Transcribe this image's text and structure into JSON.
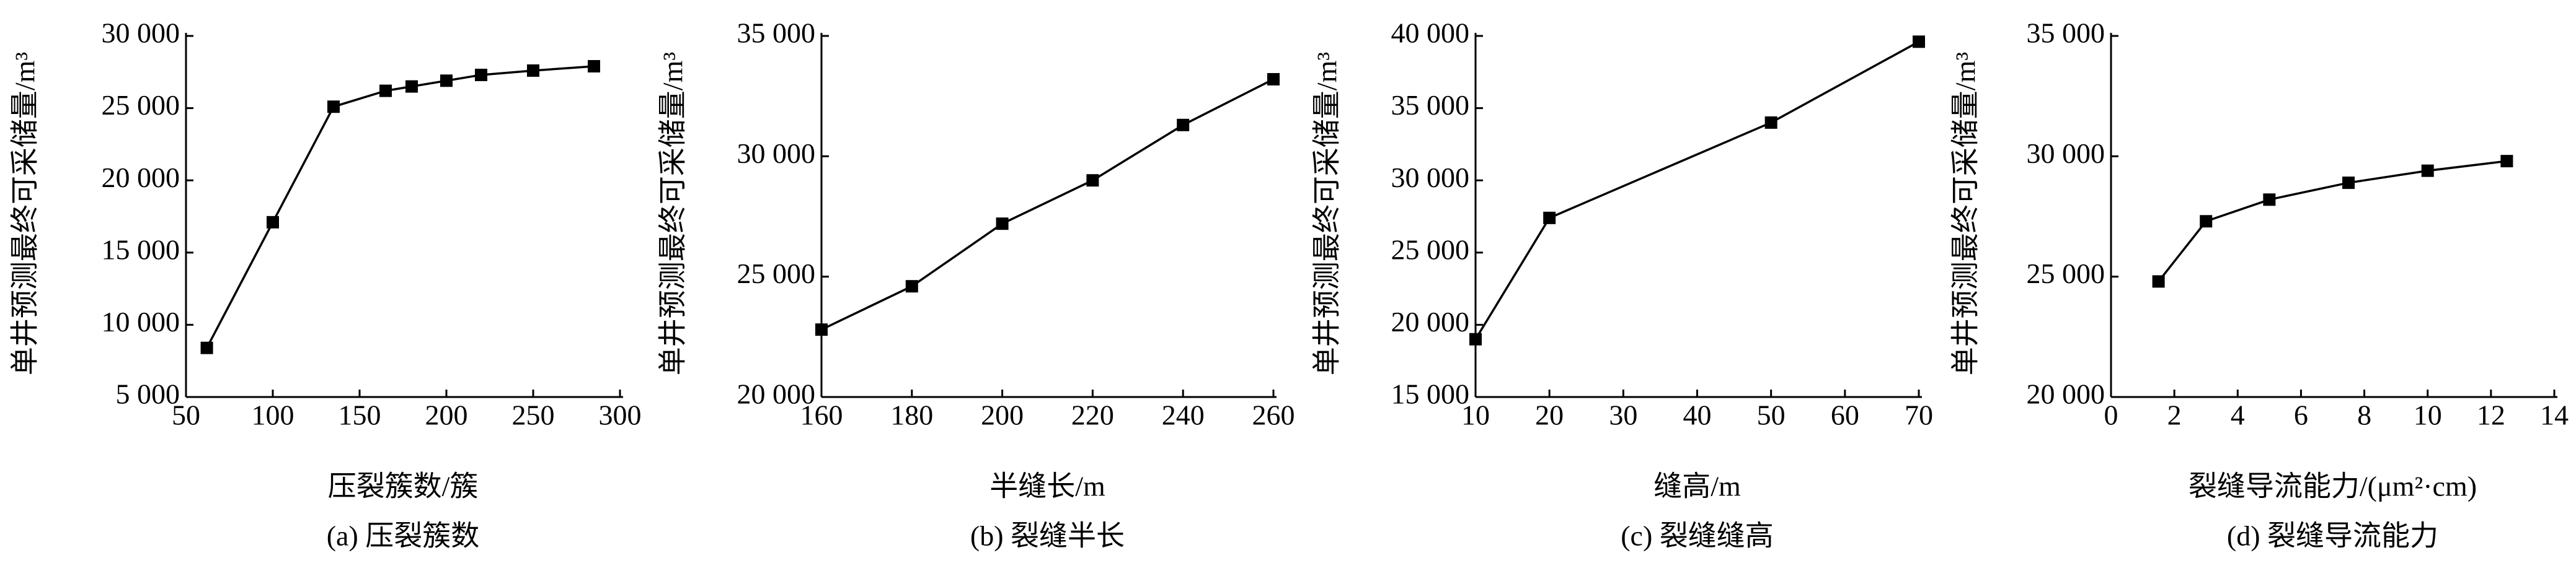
{
  "chart_data": [
    {
      "type": "line",
      "ylabel": "单井预测最终可采储量/m³",
      "xlabel": "压裂簇数/簇",
      "caption": "(a) 压裂簇数",
      "color": "#000000",
      "x": [
        62,
        100,
        135,
        165,
        180,
        200,
        220,
        250,
        285
      ],
      "values": [
        8400,
        17100,
        25100,
        26200,
        26500,
        26900,
        27300,
        27600,
        27900
      ],
      "xlim": [
        50,
        300
      ],
      "xticks": [
        50,
        100,
        150,
        200,
        250,
        300
      ],
      "ylim": [
        5000,
        30000
      ],
      "yticks": [
        {
          "value": 5000,
          "label": "5 000"
        },
        {
          "value": 10000,
          "label": "10 000"
        },
        {
          "value": 15000,
          "label": "15 000"
        },
        {
          "value": 20000,
          "label": "20 000"
        },
        {
          "value": 25000,
          "label": "25 000"
        },
        {
          "value": 30000,
          "label": "30 000"
        }
      ]
    },
    {
      "type": "line",
      "ylabel": "单井预测最终可采储量/m³",
      "xlabel": "半缝长/m",
      "caption": "(b) 裂缝半长",
      "color": "#000000",
      "x": [
        160,
        180,
        200,
        220,
        240,
        260
      ],
      "values": [
        22800,
        24600,
        27200,
        29000,
        31300,
        33200
      ],
      "xlim": [
        160,
        260
      ],
      "xticks": [
        160,
        180,
        200,
        220,
        240,
        260
      ],
      "ylim": [
        20000,
        35000
      ],
      "yticks": [
        {
          "value": 20000,
          "label": "20 000"
        },
        {
          "value": 25000,
          "label": "25 000"
        },
        {
          "value": 30000,
          "label": "30 000"
        },
        {
          "value": 35000,
          "label": "35 000"
        }
      ]
    },
    {
      "type": "line",
      "ylabel": "单井预测最终可采储量/m³",
      "xlabel": "缝高/m",
      "caption": "(c) 裂缝缝高",
      "color": "#000000",
      "x": [
        10,
        20,
        50,
        70
      ],
      "values": [
        19000,
        27400,
        34000,
        39600
      ],
      "xlim": [
        10,
        70
      ],
      "xticks": [
        10,
        20,
        30,
        40,
        50,
        60,
        70
      ],
      "ylim": [
        15000,
        40000
      ],
      "yticks": [
        {
          "value": 15000,
          "label": "15 000"
        },
        {
          "value": 20000,
          "label": "20 000"
        },
        {
          "value": 25000,
          "label": "25 000"
        },
        {
          "value": 30000,
          "label": "30 000"
        },
        {
          "value": 35000,
          "label": "35 000"
        },
        {
          "value": 40000,
          "label": "40 000"
        }
      ]
    },
    {
      "type": "line",
      "ylabel": "单井预测最终可采储量/m³",
      "xlabel": "裂缝导流能力/(μm²·cm)",
      "caption": "(d) 裂缝导流能力",
      "color": "#000000",
      "x": [
        1.5,
        3,
        5,
        7.5,
        10,
        12.5
      ],
      "values": [
        24800,
        27300,
        28200,
        28900,
        29400,
        29800
      ],
      "xlim": [
        0,
        14
      ],
      "xticks": [
        0,
        2,
        4,
        6,
        8,
        10,
        12,
        14
      ],
      "ylim": [
        20000,
        35000
      ],
      "yticks": [
        {
          "value": 20000,
          "label": "20 000"
        },
        {
          "value": 25000,
          "label": "25 000"
        },
        {
          "value": 30000,
          "label": "30 000"
        },
        {
          "value": 35000,
          "label": "35 000"
        }
      ]
    }
  ]
}
